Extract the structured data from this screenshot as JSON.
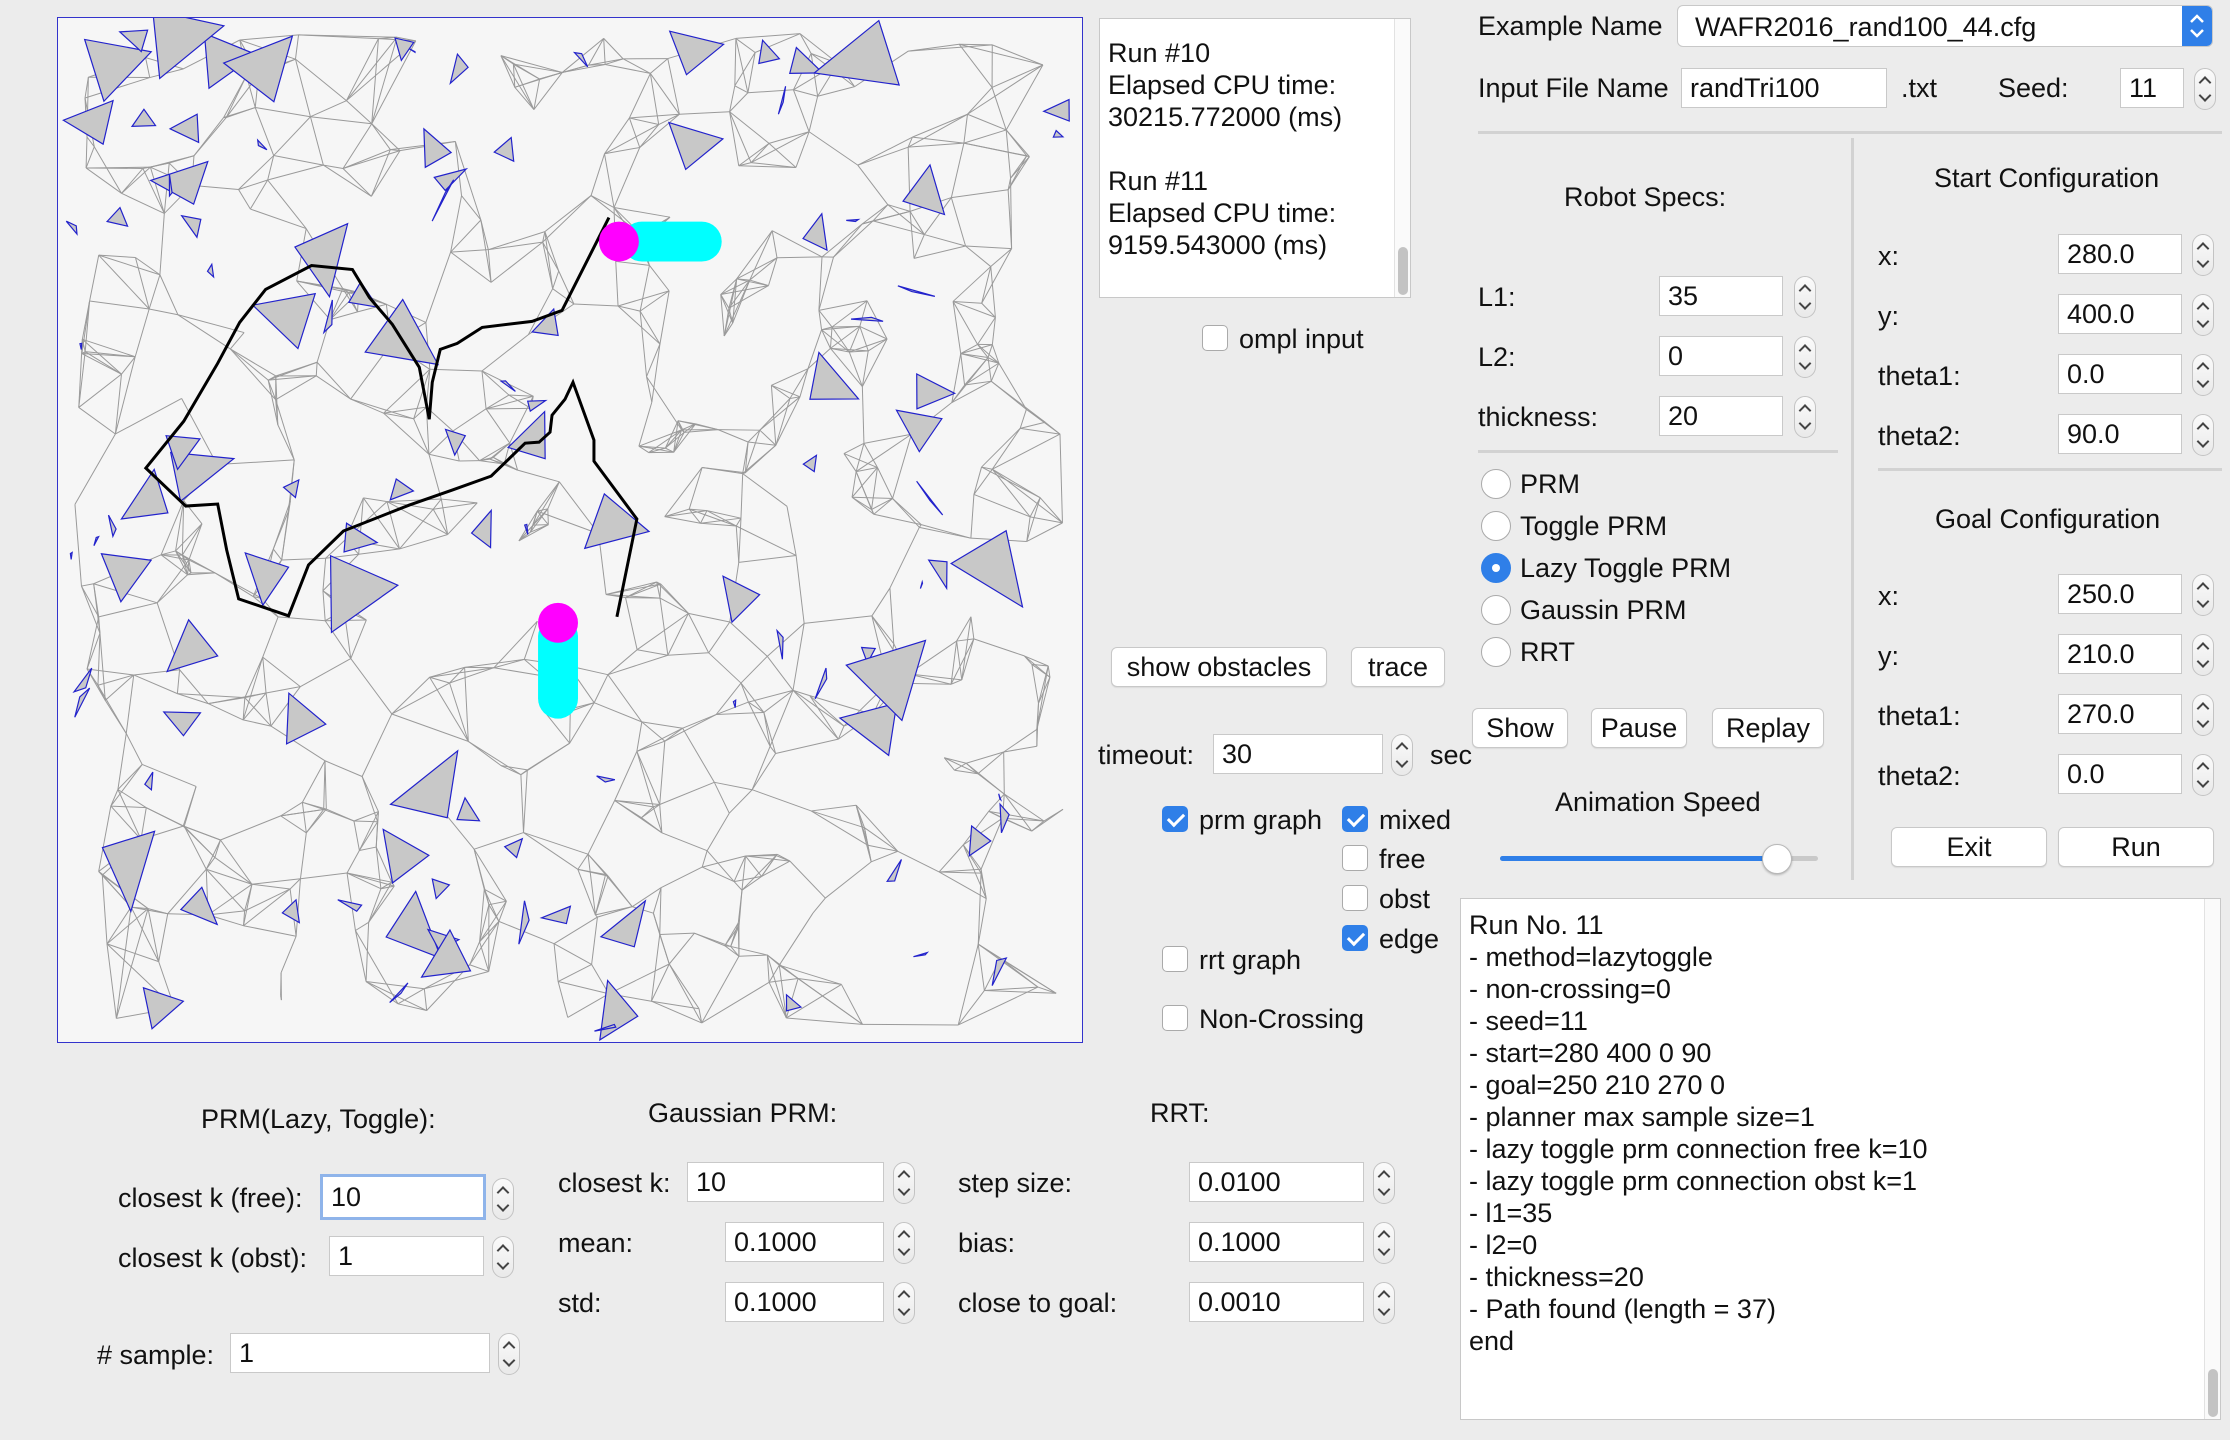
{
  "header": {
    "example_name_label": "Example Name",
    "example_name_value": "WAFR2016_rand100_44.cfg",
    "input_file_label": "Input File Name",
    "input_file_value": "randTri100",
    "input_file_ext": ".txt",
    "seed_label": "Seed:",
    "seed_value": "11"
  },
  "run_log": {
    "lines": [
      "Run #10",
      "Elapsed CPU time:",
      "30215.772000 (ms)",
      "",
      "Run #11",
      "Elapsed CPU time:",
      "9159.543000 (ms)"
    ]
  },
  "ompl_input": {
    "label": "ompl input",
    "checked": false
  },
  "robot_specs": {
    "title": "Robot Specs:",
    "l1_label": "L1:",
    "l1_value": "35",
    "l2_label": "L2:",
    "l2_value": "0",
    "thickness_label": "thickness:",
    "thickness_value": "20"
  },
  "start_config": {
    "title": "Start Configuration",
    "x_label": "x:",
    "x_value": "280.0",
    "y_label": "y:",
    "y_value": "400.0",
    "theta1_label": "theta1:",
    "theta1_value": "0.0",
    "theta2_label": "theta2:",
    "theta2_value": "90.0"
  },
  "goal_config": {
    "title": "Goal Configuration",
    "x_label": "x:",
    "x_value": "250.0",
    "y_label": "y:",
    "y_value": "210.0",
    "theta1_label": "theta1:",
    "theta1_value": "270.0",
    "theta2_label": "theta2:",
    "theta2_value": "0.0"
  },
  "planners": {
    "options": [
      "PRM",
      "Toggle PRM",
      "Lazy Toggle PRM",
      "Gaussin PRM",
      "RRT"
    ],
    "selected": "Lazy Toggle PRM"
  },
  "buttons": {
    "show_obstacles": "show obstacles",
    "trace": "trace",
    "show": "Show",
    "pause": "Pause",
    "replay": "Replay",
    "exit": "Exit",
    "run": "Run"
  },
  "timeout": {
    "label": "timeout:",
    "value": "30",
    "unit": "sec"
  },
  "animation": {
    "label": "Animation Speed",
    "level": 0.87
  },
  "graph_options": {
    "prm_graph": {
      "label": "prm graph",
      "checked": true
    },
    "mixed": {
      "label": "mixed",
      "checked": true
    },
    "free": {
      "label": "free",
      "checked": false
    },
    "obst": {
      "label": "obst",
      "checked": false
    },
    "edge": {
      "label": "edge",
      "checked": true
    },
    "rrt_graph": {
      "label": "rrt graph",
      "checked": false
    },
    "non_crossing": {
      "label": "Non-Crossing",
      "checked": false
    }
  },
  "prm_params": {
    "title": "PRM(Lazy, Toggle):",
    "k_free_label": "closest k (free):",
    "k_free_value": "10",
    "k_obst_label": "closest k (obst):",
    "k_obst_value": "1",
    "sample_label": "# sample:",
    "sample_value": "1"
  },
  "gaussian_params": {
    "title": "Gaussian PRM:",
    "k_label": "closest k:",
    "k_value": "10",
    "mean_label": "mean:",
    "mean_value": "0.1000",
    "std_label": "std:",
    "std_value": "0.1000"
  },
  "rrt_params": {
    "title": "RRT:",
    "step_label": "step size:",
    "step_value": "0.0100",
    "bias_label": "bias:",
    "bias_value": "0.1000",
    "goal_label": "close to goal:",
    "goal_value": "0.0010"
  },
  "output_log": {
    "lines": [
      "Run No. 11",
      "- method=lazytoggle",
      "- non-crossing=0",
      "- seed=11",
      "- start=280 400 0 90",
      "- goal=250 210 270 0",
      "- planner max sample size=1",
      "- lazy toggle prm connection free k=10",
      "- lazy toggle prm connection obst k=1",
      "- l1=35",
      "- l2=0",
      "- thickness=20",
      "- Path found (length = 37)",
      "end"
    ]
  },
  "colors": {
    "accent": "#2f7fe8",
    "graph_edge": "#8a8a8a",
    "obstacle_fill": "#c8c8c8",
    "obstacle_edge": "#2222cc",
    "path": "#000000",
    "robot_joint": "#ff00ff",
    "robot_link": "#00ffff"
  }
}
